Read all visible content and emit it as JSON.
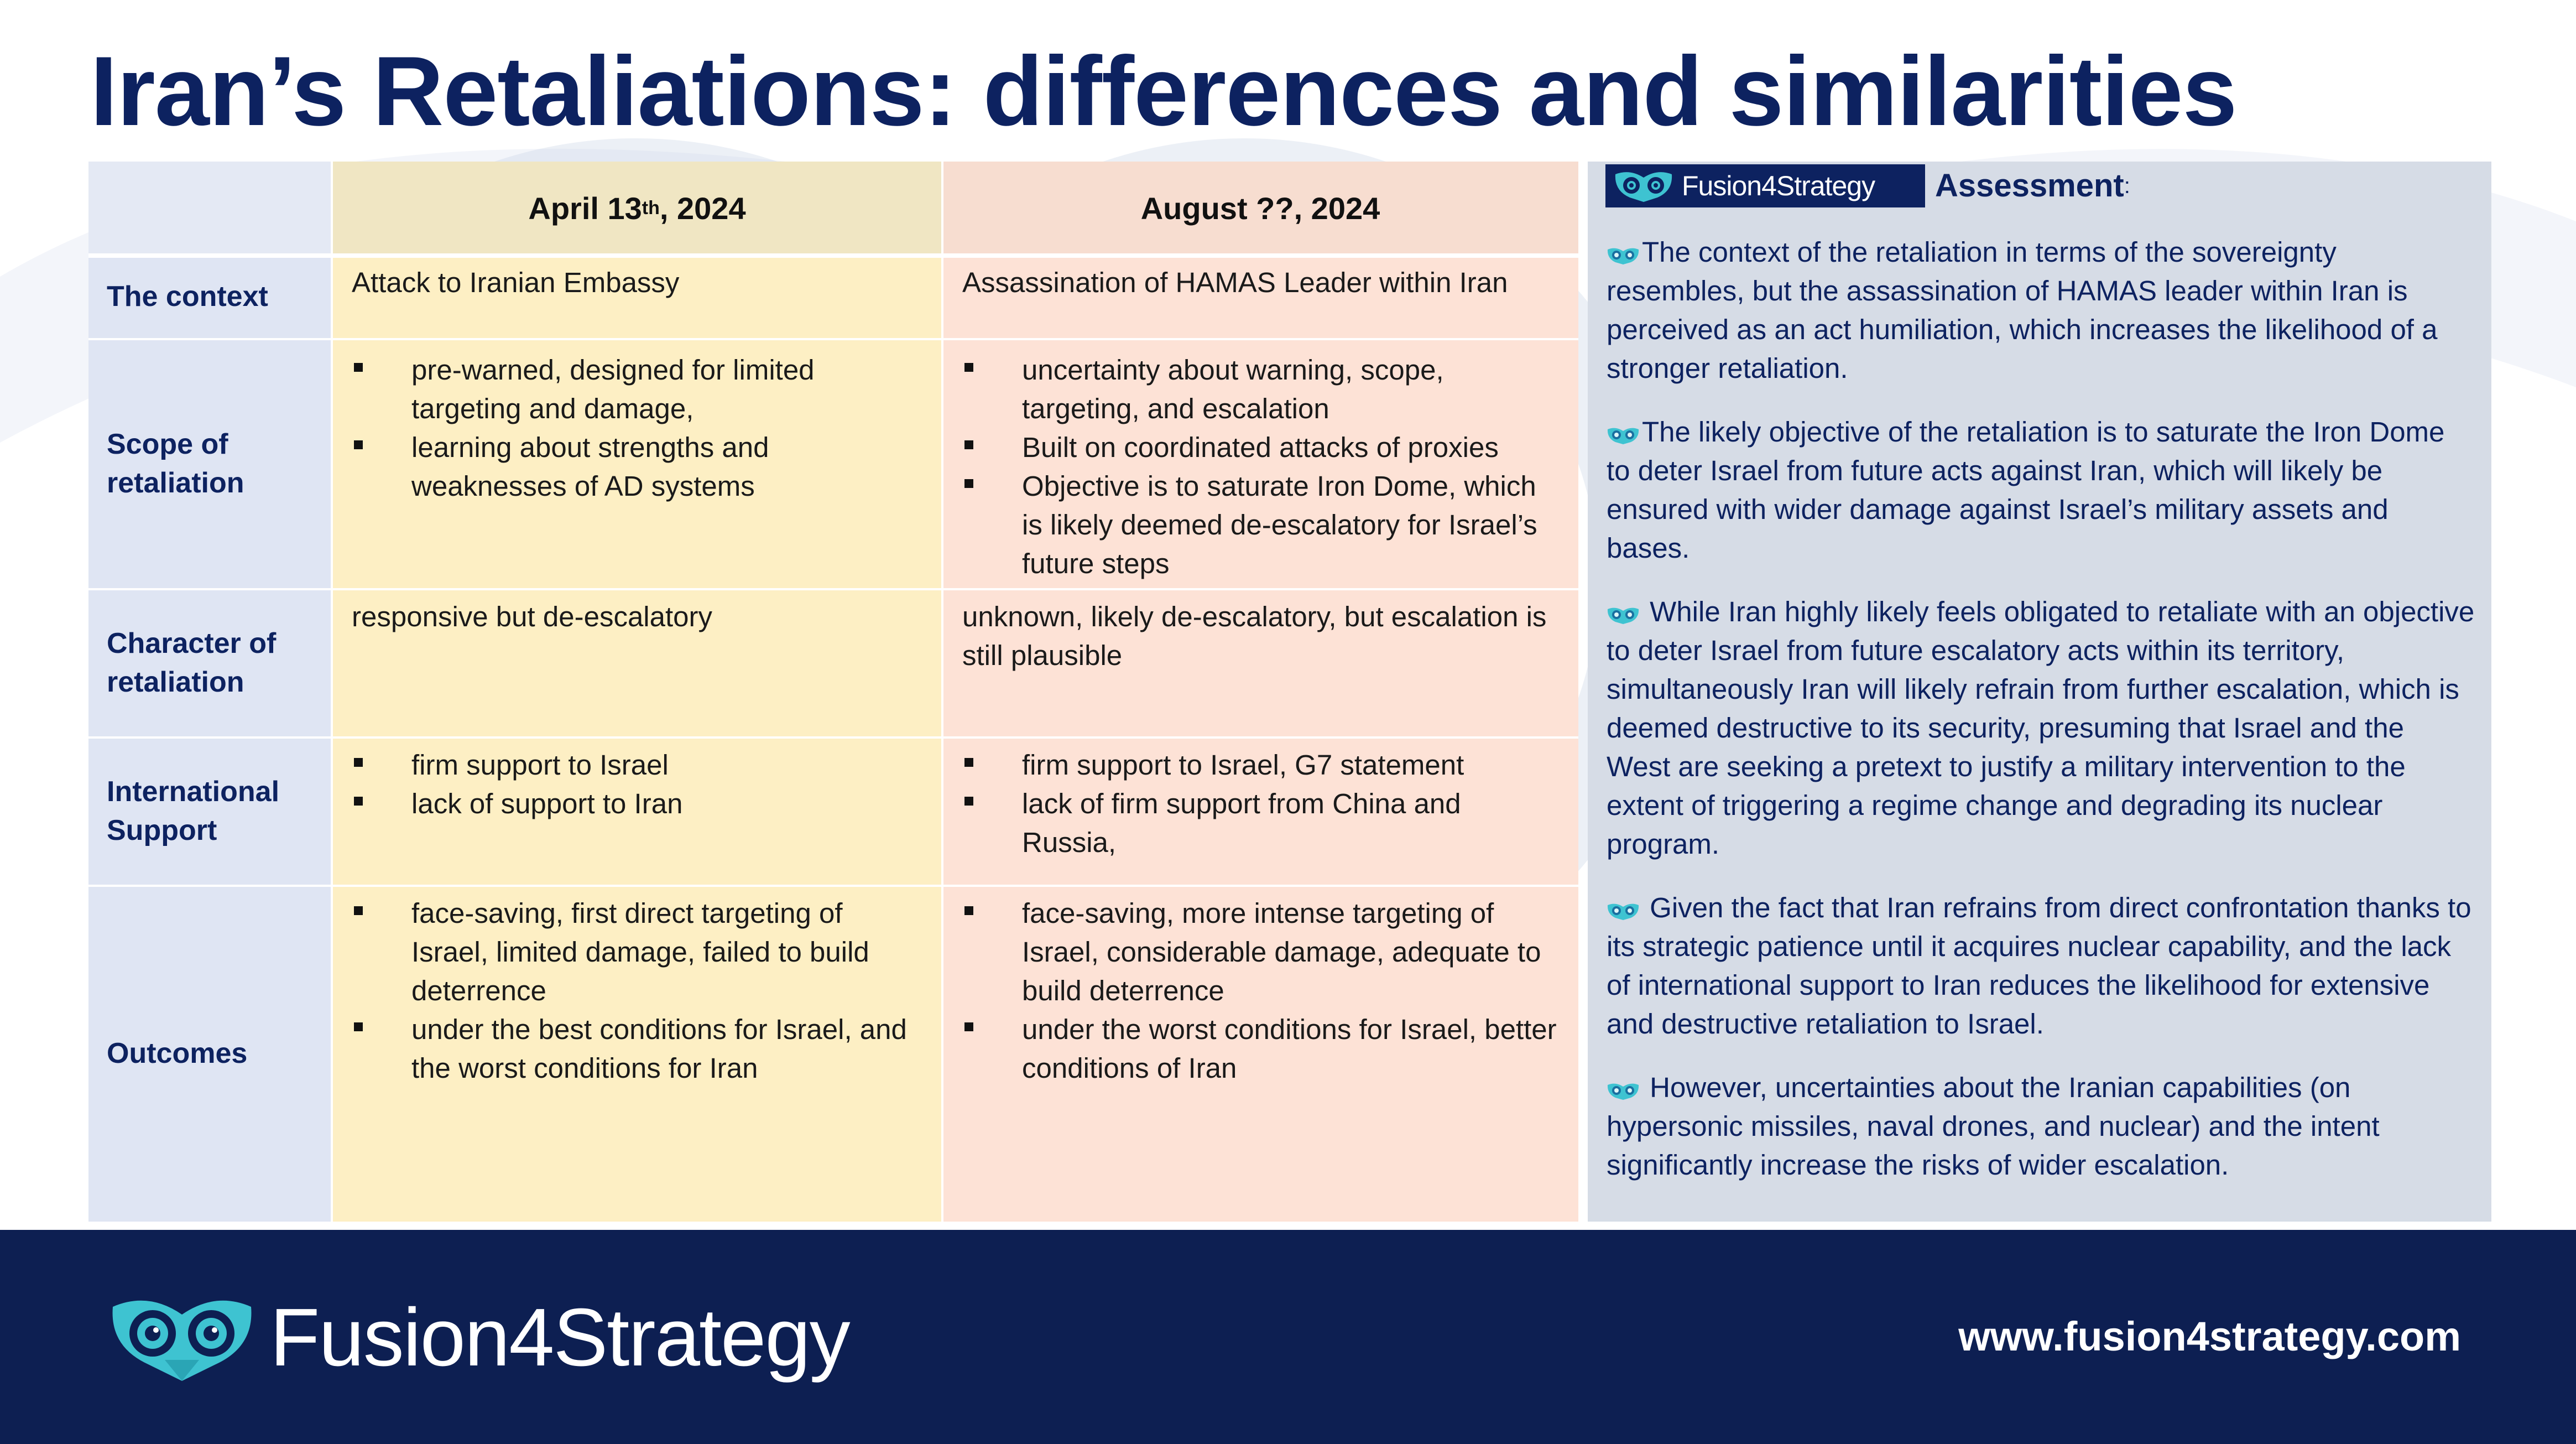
{
  "title": "Iran’s Retaliations: differences and similarities",
  "columns": [
    {
      "label_main": "April 13",
      "label_sup": "th",
      "label_rest": ", 2024"
    },
    {
      "label": "August ??, 2024"
    }
  ],
  "rows": [
    {
      "header": "The context",
      "col1_text": "Attack to Iranian Embassy",
      "col2_text": "Assassination of HAMAS Leader within Iran"
    },
    {
      "header": "Scope of retaliation",
      "col1_items": [
        "pre-warned, designed for limited targeting and damage,",
        "learning about strengths and weaknesses of AD systems"
      ],
      "col2_items": [
        "uncertainty about warning, scope, targeting, and escalation",
        "Built on coordinated attacks of proxies",
        "Objective is to saturate Iron Dome, which is likely deemed de-escalatory for Israel’s future steps"
      ]
    },
    {
      "header": "Character of retaliation",
      "col1_text": "responsive but de-escalatory",
      "col2_text": "unknown, likely de-escalatory, but escalation is still plausible"
    },
    {
      "header": "International Support",
      "col1_items": [
        "firm support to Israel",
        "lack of support to Iran"
      ],
      "col2_items": [
        "firm support to Israel, G7 statement",
        "lack of firm support from China and Russia,"
      ]
    },
    {
      "header": "Outcomes",
      "col1_items": [
        "face-saving, first direct targeting of Israel, limited damage, failed to build deterrence",
        "under the best conditions for Israel, and the worst conditions for Iran"
      ],
      "col2_items": [
        "face-saving, more intense targeting of Israel, considerable damage, adequate to build deterrence",
        "under the worst conditions for Israel, better conditions of Iran"
      ]
    }
  ],
  "assessment": {
    "brand": "Fusion4Strategy",
    "title": "Assessment",
    "colon": ":",
    "bullet_icon": "owl-icon",
    "paragraphs": [
      "The context of the retaliation in terms of the sovereignty resembles, but the assassination of HAMAS leader within Iran is perceived as an act humiliation, which increases the likelihood of a stronger retaliation.",
      "The likely objective of the retaliation is to saturate the Iron Dome to deter Israel from future acts against Iran, which will likely be ensured with wider damage against Israel’s military assets and bases.",
      " While Iran highly likely feels obligated to retaliate with an objective to deter Israel from future escalatory acts within its territory, simultaneously Iran will likely refrain from further escalation, which is deemed destructive to its security, presuming that Israel and the West are seeking a pretext to justify a military intervention to the extent of triggering a regime change and degrading its nuclear program.",
      " Given the fact that Iran refrains from direct confrontation thanks to its strategic patience until it acquires nuclear capability, and the lack of international support to Iran reduces the likelihood for extensive and destructive retaliation to Israel.",
      " However, uncertainties about the Iranian capabilities (on hypersonic missiles, naval drones, and nuclear) and the intent significantly increase the risks of wider escalation."
    ]
  },
  "footer": {
    "brand": "Fusion4Strategy",
    "url": "www.fusion4strategy.com"
  },
  "colors": {
    "navy": "#0d2260",
    "footer_bg": "#0d1f52",
    "teal": "#3ec3d1",
    "col1": "#fdefc4",
    "col2": "#fde2d6",
    "row_header": "#dfe5f3",
    "panel": "#d6dce6"
  }
}
